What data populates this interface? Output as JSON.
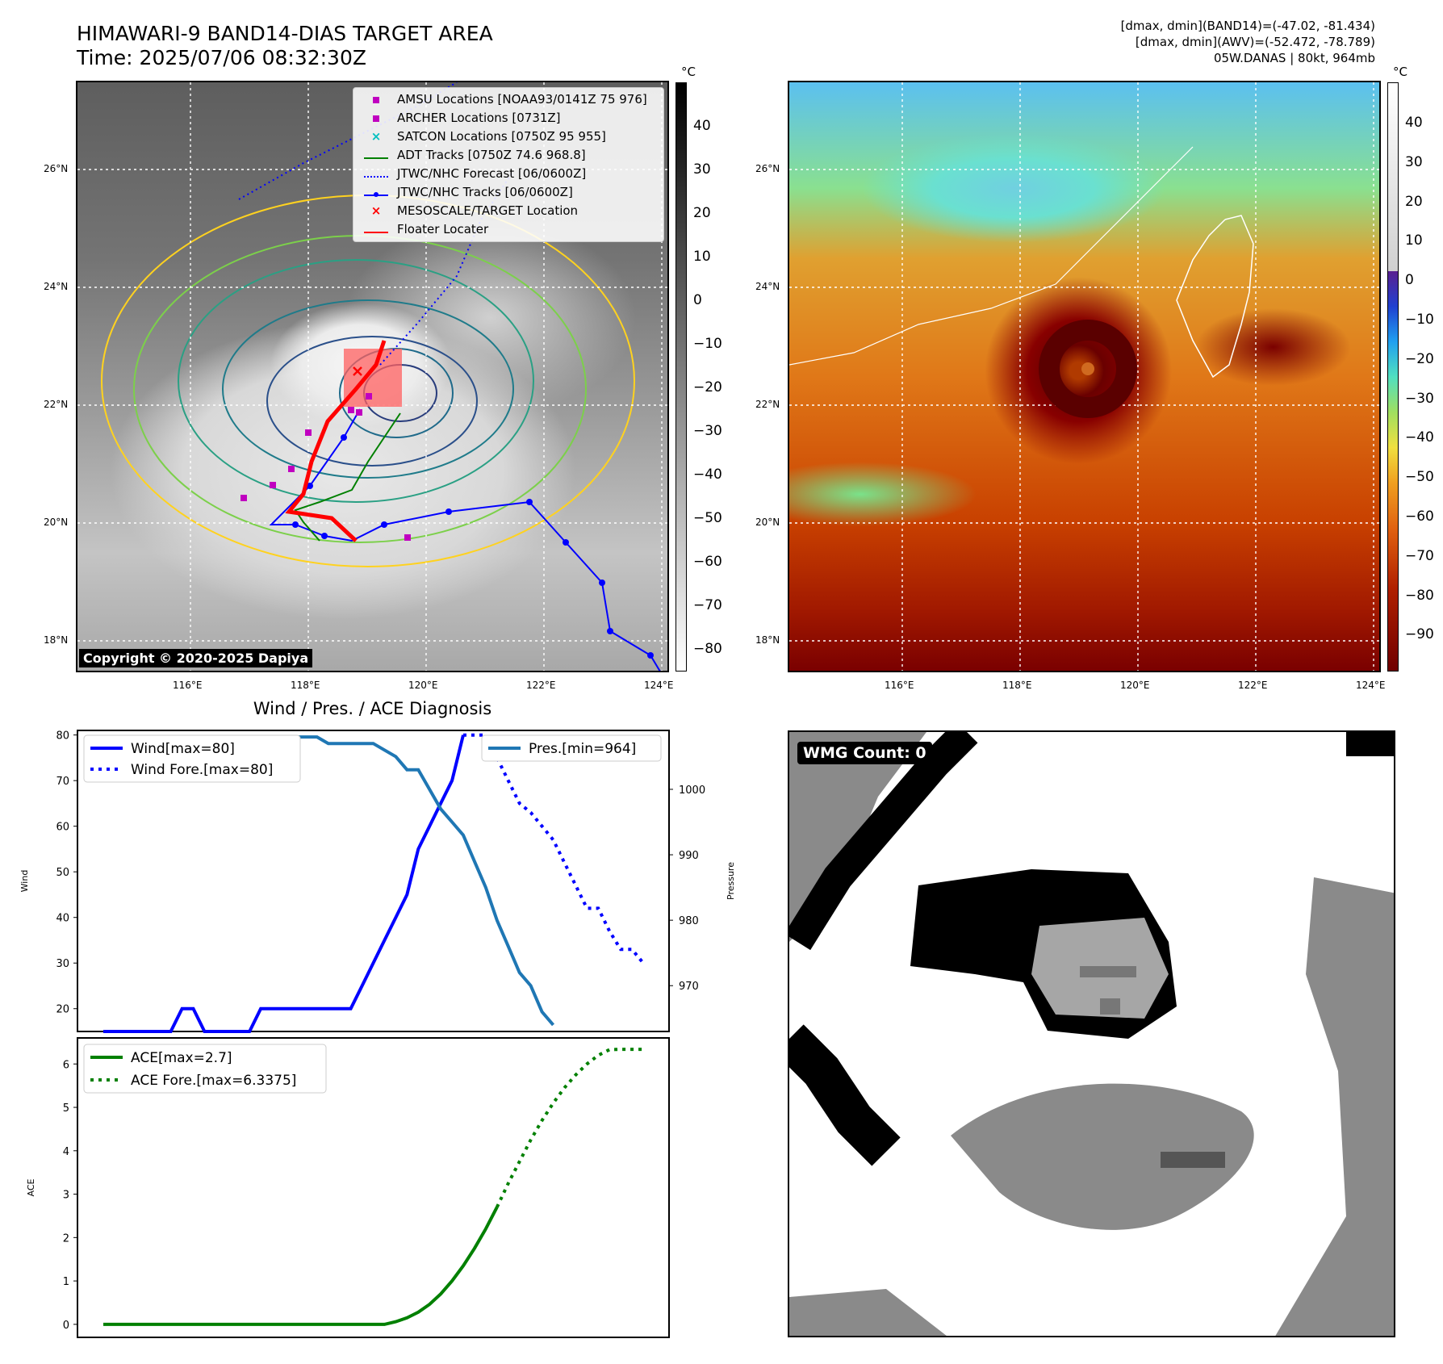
{
  "header": {
    "title_line1": "HIMAWARI-9 BAND14-DIAS TARGET AREA",
    "title_line2": "Time: 2025/07/06 08:32:30Z",
    "stat_line1": "[dmax, dmin](BAND14)=(-47.02, -81.434)",
    "stat_line2": "[dmax, dmin](AWV)=(-52.472, -78.789)",
    "stat_line3": "05W.DANAS | 80kt, 964mb"
  },
  "colorbar_unit": "°C",
  "ir_panel": {
    "colorbar_ticks": [
      "40",
      "30",
      "20",
      "10",
      "0",
      "−10",
      "−20",
      "−30",
      "−40",
      "−50",
      "−60",
      "−70",
      "−80"
    ],
    "lat_labels": [
      "26°N",
      "24°N",
      "22°N",
      "20°N",
      "18°N"
    ],
    "lon_labels": [
      "116°E",
      "118°E",
      "120°E",
      "122°E",
      "124°E"
    ],
    "copyright": "Copyright © 2020-2025 Dapiya",
    "legend": [
      {
        "label": "AMSU Locations [NOAA93/0141Z 75 976]",
        "symbol": "square",
        "color": "#c000c0"
      },
      {
        "label": "ARCHER Locations [0731Z]",
        "symbol": "square",
        "color": "#c000c0"
      },
      {
        "label": "SATCON Locations [0750Z 95 955]",
        "symbol": "x",
        "color": "#00bfbf"
      },
      {
        "label": "ADT Tracks [0750Z 74.6 968.8]",
        "symbol": "line",
        "color": "#008000"
      },
      {
        "label": "JTWC/NHC Forecast [06/0600Z]",
        "symbol": "dotted",
        "color": "#0000ff"
      },
      {
        "label": "JTWC/NHC Tracks [06/0600Z]",
        "symbol": "line-dot",
        "color": "#0000ff"
      },
      {
        "label": "MESOSCALE/TARGET Location",
        "symbol": "x",
        "color": "#ff0000"
      },
      {
        "label": "Floater Locater",
        "symbol": "line",
        "color": "#ff0000"
      }
    ]
  },
  "awv_panel": {
    "colorbar_ticks": [
      "40",
      "30",
      "20",
      "10",
      "0",
      "−10",
      "−20",
      "−30",
      "−40",
      "−50",
      "−60",
      "−70",
      "−80",
      "−90"
    ],
    "lat_labels": [
      "26°N",
      "24°N",
      "22°N",
      "20°N",
      "18°N"
    ],
    "lon_labels": [
      "116°E",
      "118°E",
      "120°E",
      "122°E",
      "124°E"
    ]
  },
  "wmg_panel": {
    "label": "WMG Count: 0"
  },
  "colors": {
    "wind": "#0000ff",
    "pressure": "#1f77b4",
    "ace": "#008000",
    "jtwc": "#0000ff",
    "floater": "#ff0000"
  },
  "chart_data": [
    {
      "type": "line",
      "title": "Wind / Pres. / ACE Diagnosis",
      "ylabel": "Wind",
      "y2label": "Pressure",
      "ylim": [
        15,
        81
      ],
      "y2lim": [
        963,
        1009
      ],
      "yticks": [
        20,
        30,
        40,
        50,
        60,
        70,
        80
      ],
      "y2ticks": [
        970,
        980,
        990,
        1000
      ],
      "x": [
        0,
        1,
        2,
        3,
        4,
        5,
        6,
        7,
        8,
        9,
        10,
        11,
        12,
        13,
        14,
        15,
        16,
        17,
        18,
        19,
        20,
        21,
        22,
        23,
        24,
        25,
        26,
        27,
        28,
        29,
        30,
        31,
        32,
        33,
        34,
        35,
        36,
        37,
        38,
        39,
        40,
        41,
        42,
        43,
        44,
        45,
        46,
        47,
        48
      ],
      "series": [
        {
          "name": "Wind[max=80]",
          "axis": "left",
          "style": "solid",
          "values": [
            15,
            15,
            15,
            15,
            15,
            15,
            15,
            20,
            20,
            15,
            15,
            15,
            15,
            15,
            20,
            20,
            20,
            20,
            20,
            20,
            20,
            20,
            20,
            25,
            30,
            35,
            40,
            45,
            55,
            60,
            65,
            70,
            80,
            null,
            null,
            null,
            null,
            null,
            null,
            null,
            null,
            null,
            null,
            null,
            null,
            null,
            null,
            null,
            null
          ]
        },
        {
          "name": "Wind Fore.[max=80]",
          "axis": "left",
          "style": "dotted",
          "values": [
            null,
            null,
            null,
            null,
            null,
            null,
            null,
            null,
            null,
            null,
            null,
            null,
            null,
            null,
            null,
            null,
            null,
            null,
            null,
            null,
            null,
            null,
            null,
            null,
            null,
            null,
            null,
            null,
            null,
            null,
            null,
            null,
            80,
            80,
            80,
            75,
            70,
            65,
            63,
            60,
            57,
            52,
            47,
            42,
            42,
            37,
            33,
            33,
            30
          ]
        },
        {
          "name": "Pres.[min=964]",
          "axis": "right",
          "style": "solid",
          "values": [
            1008,
            1008,
            1008,
            1008,
            1007,
            1007,
            1007,
            1007,
            1007,
            1007,
            1007,
            1007,
            1007,
            1007,
            1008,
            1008,
            1007,
            1008,
            1008,
            1008,
            1007,
            1007,
            1007,
            1007,
            1007,
            1006,
            1005,
            1003,
            1003,
            1000,
            997,
            995,
            993,
            989,
            985,
            980,
            976,
            972,
            970,
            966,
            964,
            null,
            null,
            null,
            null,
            null,
            null,
            null,
            null
          ]
        }
      ]
    },
    {
      "type": "area",
      "ylabel": "ACE",
      "ylim": [
        -0.3,
        6.6
      ],
      "yticks": [
        0,
        1,
        2,
        3,
        4,
        5,
        6
      ],
      "x": [
        0,
        1,
        2,
        3,
        4,
        5,
        6,
        7,
        8,
        9,
        10,
        11,
        12,
        13,
        14,
        15,
        16,
        17,
        18,
        19,
        20,
        21,
        22,
        23,
        24,
        25,
        26,
        27,
        28,
        29,
        30,
        31,
        32,
        33,
        34,
        35,
        36,
        37,
        38,
        39,
        40,
        41,
        42,
        43,
        44,
        45,
        46,
        47,
        48
      ],
      "series": [
        {
          "name": "ACE[max=2.7]",
          "style": "solid",
          "values": [
            0,
            0,
            0,
            0,
            0,
            0,
            0,
            0,
            0,
            0,
            0,
            0,
            0,
            0,
            0,
            0,
            0,
            0,
            0,
            0,
            0,
            0,
            0,
            0,
            0,
            0,
            0.06,
            0.15,
            0.28,
            0.46,
            0.7,
            1.0,
            1.35,
            1.75,
            2.2,
            2.7,
            null,
            null,
            null,
            null,
            null,
            null,
            null,
            null,
            null,
            null,
            null,
            null,
            null
          ]
        },
        {
          "name": "ACE Fore.[max=6.3375]",
          "style": "dotted",
          "values": [
            null,
            null,
            null,
            null,
            null,
            null,
            null,
            null,
            null,
            null,
            null,
            null,
            null,
            null,
            null,
            null,
            null,
            null,
            null,
            null,
            null,
            null,
            null,
            null,
            null,
            null,
            null,
            null,
            null,
            null,
            null,
            null,
            null,
            null,
            null,
            2.7,
            3.25,
            3.75,
            4.25,
            4.7,
            5.1,
            5.45,
            5.75,
            6.0,
            6.2,
            6.33,
            6.3375,
            6.3375,
            6.3375
          ]
        }
      ]
    }
  ]
}
